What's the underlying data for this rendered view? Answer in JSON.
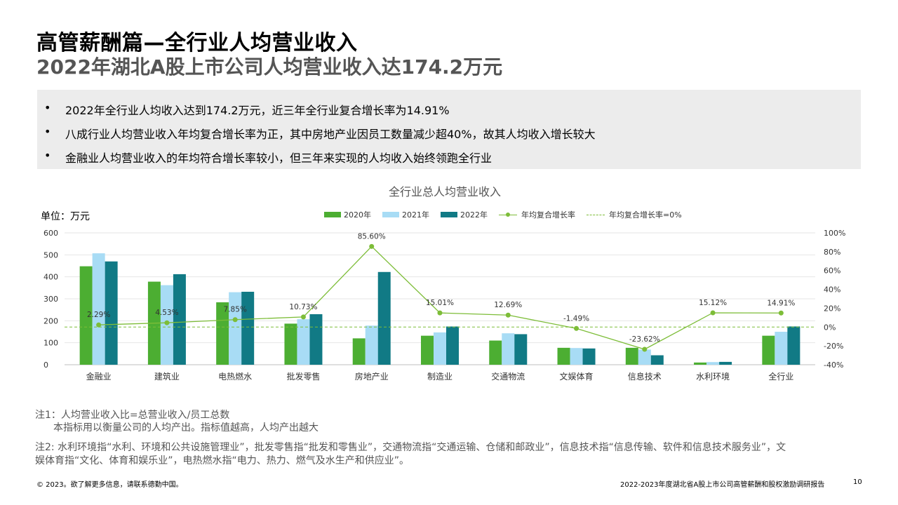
{
  "header": {
    "title": "高管薪酬篇—全行业人均营业收入",
    "subtitle": "2022年湖北A股上市公司人均营业收入达174.2万元"
  },
  "summary": {
    "bullet_char": "•",
    "items": [
      "2022年全行业人均收入达到174.2万元，近三年全行业复合增长率为14.91%",
      "八成行业人均营业收入年均复合增长率为正，其中房地产业因员工数量减少超40%，故其人均收入增长较大",
      "金融业人均营业收入的年均符合增长率较小，但三年来实现的人均收入始终领跑全行业"
    ]
  },
  "chart_data": {
    "type": "bar",
    "title": "全行业总人均营业收入",
    "unit_label": "单位：万元",
    "categories": [
      "金融业",
      "建筑业",
      "电热燃水",
      "批发零售",
      "房地产业",
      "制造业",
      "交通物流",
      "文娱体育",
      "信息技术",
      "水利环境",
      "全行业"
    ],
    "series": [
      {
        "name": "2020年",
        "type": "bar",
        "color": "#4cae32",
        "values": [
          448,
          378,
          284,
          187,
          120,
          132,
          110,
          77,
          77,
          10,
          132
        ]
      },
      {
        "name": "2021年",
        "type": "bar",
        "color": "#a8dcf5",
        "values": [
          507,
          362,
          330,
          207,
          178,
          147,
          143,
          76,
          69,
          12,
          150
        ]
      },
      {
        "name": "2022年",
        "type": "bar",
        "color": "#117a85",
        "values": [
          470,
          412,
          332,
          230,
          422,
          174,
          139,
          74,
          43,
          13,
          174.2
        ]
      },
      {
        "name": "年均复合增长率",
        "type": "line",
        "axis": "right",
        "color": "#7dbd38",
        "values": [
          2.29,
          4.53,
          7.85,
          10.73,
          85.6,
          15.01,
          12.69,
          -1.49,
          -23.62,
          15.12,
          14.91
        ]
      }
    ],
    "point_labels": [
      "2.29%",
      "4.53%",
      "7.85%",
      "10.73%",
      "85.60%",
      "15.01%",
      "12.69%",
      "-1.49%",
      "-23.62%",
      "15.12%",
      "14.91%"
    ],
    "reference_line": {
      "name": "年均复合增长率=0%",
      "value": 0,
      "axis": "right",
      "style": "dashed"
    },
    "y_left": {
      "ylim": [
        0,
        600
      ],
      "ticks": [
        "0",
        "100",
        "200",
        "300",
        "400",
        "500",
        "600"
      ]
    },
    "y_right": {
      "ylim": [
        -40,
        100
      ],
      "ticks": [
        "-40%",
        "-20%",
        "0%",
        "20%",
        "40%",
        "60%",
        "80%",
        "100%"
      ]
    },
    "legend_placement": "top",
    "grid": true
  },
  "notes": {
    "note1_line1": "注1：人均营业收入比=总营业收入/员工总数",
    "note1_line2": "本指标用以衡量公司的人均产出。指标值越高，人均产出越大",
    "note2_line1": "注2: 水利环境指“水利、环境和公共设施管理业”，批发零售指“批发和零售业”，交通物流指“交通运输、仓储和邮政业”，信息技术指“信息传输、软件和信息技术服务业”，文",
    "note2_line2": "娱体育指“文化、体育和娱乐业”，电热燃水指“电力、热力、燃气及水生产和供应业”。"
  },
  "footer": {
    "left": "© 2023。欲了解更多信息，请联系德勤中国。",
    "right": "2022-2023年度湖北省A股上市公司高管薪酬和股权激励调研报告",
    "page": "10"
  }
}
